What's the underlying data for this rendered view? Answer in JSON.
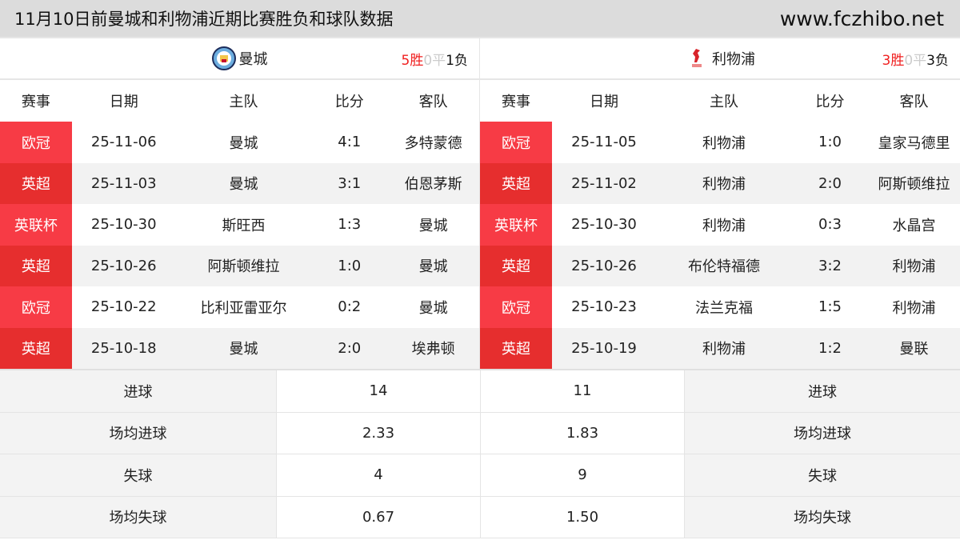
{
  "header": {
    "title": "11月10日前曼城和利物浦近期比赛胜负和球队数据",
    "site": "www.fczhibo.net"
  },
  "columns": [
    "赛事",
    "日期",
    "主队",
    "比分",
    "客队"
  ],
  "teams": [
    {
      "name": "曼城",
      "logo_icon": "man-city-crest-icon",
      "record": {
        "win": "5胜",
        "draw": "0平",
        "loss": "1负"
      },
      "matches": [
        [
          "欧冠",
          "25-11-06",
          "曼城",
          "4:1",
          "多特蒙德"
        ],
        [
          "英超",
          "25-11-03",
          "曼城",
          "3:1",
          "伯恩茅斯"
        ],
        [
          "英联杯",
          "25-10-30",
          "斯旺西",
          "1:3",
          "曼城"
        ],
        [
          "英超",
          "25-10-26",
          "阿斯顿维拉",
          "1:0",
          "曼城"
        ],
        [
          "欧冠",
          "25-10-22",
          "比利亚雷亚尔",
          "0:2",
          "曼城"
        ],
        [
          "英超",
          "25-10-18",
          "曼城",
          "2:0",
          "埃弗顿"
        ]
      ]
    },
    {
      "name": "利物浦",
      "logo_icon": "liverpool-liverbird-icon",
      "record": {
        "win": "3胜",
        "draw": "0平",
        "loss": "3负"
      },
      "matches": [
        [
          "欧冠",
          "25-11-05",
          "利物浦",
          "1:0",
          "皇家马德里"
        ],
        [
          "英超",
          "25-11-02",
          "利物浦",
          "2:0",
          "阿斯顿维拉"
        ],
        [
          "英联杯",
          "25-10-30",
          "利物浦",
          "0:3",
          "水晶宫"
        ],
        [
          "英超",
          "25-10-26",
          "布伦特福德",
          "3:2",
          "利物浦"
        ],
        [
          "欧冠",
          "25-10-23",
          "法兰克福",
          "1:5",
          "利物浦"
        ],
        [
          "英超",
          "25-10-19",
          "利物浦",
          "1:2",
          "曼联"
        ]
      ]
    }
  ],
  "stats": [
    {
      "label": "进球",
      "home": "14",
      "away": "11"
    },
    {
      "label": "场均进球",
      "home": "2.33",
      "away": "1.83"
    },
    {
      "label": "失球",
      "home": "4",
      "away": "9"
    },
    {
      "label": "场均失球",
      "home": "0.67",
      "away": "1.50"
    }
  ],
  "colors": {
    "competition_a": "#f73b45",
    "competition_b": "#e62e2e",
    "win": "#f02020",
    "draw": "#cccccc"
  }
}
